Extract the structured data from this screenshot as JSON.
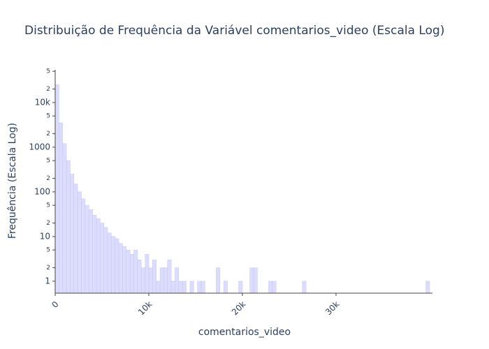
{
  "chart_data": {
    "type": "histogram",
    "title": "Distribuição de Frequência da Variável comentarios_video (Escala Log)",
    "x_label": "comentarios_video",
    "y_label": "Frequência (Escala Log)",
    "color": "#dcdcfc",
    "edge_color": "#c4c6f7",
    "log_y": true,
    "bins": [
      0,
      400,
      800,
      1200,
      1600,
      2000,
      2400,
      2800,
      3200,
      3600,
      4000,
      4400,
      4800,
      5200,
      5600,
      6000,
      6400,
      6800,
      7200,
      7600,
      8000,
      8400,
      8800,
      9200,
      9600,
      10000,
      10400,
      10800,
      11200,
      11600,
      12000,
      12400,
      12800,
      13200,
      13600,
      14000,
      14400,
      14800,
      15200,
      15600,
      16000,
      16400,
      16800,
      17200,
      17600,
      18000,
      18400,
      18800,
      19200,
      19600,
      20000,
      20400,
      20800,
      21200,
      21600,
      22000,
      22400,
      22800,
      23200,
      23600,
      24000,
      24400,
      24800,
      25200,
      25600,
      26000,
      26400,
      26800,
      27200,
      27600,
      28000,
      28400,
      28800,
      29200,
      29600,
      30000,
      30400,
      30800,
      31200,
      31600,
      32000,
      32400,
      32800,
      33200,
      33600,
      34000,
      34400,
      34800,
      35200,
      35600,
      36000,
      36400,
      36800,
      37200,
      37600,
      38000,
      38400,
      38800,
      39200,
      39600,
      40000
    ],
    "values": [
      25000,
      3500,
      1200,
      500,
      250,
      150,
      100,
      70,
      50,
      40,
      30,
      25,
      20,
      16,
      12,
      10,
      9,
      7,
      6,
      5,
      4,
      5,
      3,
      2,
      4,
      2,
      3,
      1,
      2,
      2,
      3,
      1,
      2,
      1,
      1,
      0,
      1,
      0,
      1,
      1,
      0,
      0,
      0,
      2,
      0,
      1,
      0,
      0,
      0,
      1,
      0,
      0,
      2,
      2,
      0,
      0,
      0,
      1,
      1,
      0,
      0,
      0,
      0,
      0,
      0,
      0,
      1,
      0,
      0,
      0,
      0,
      0,
      0,
      0,
      0,
      0,
      0,
      0,
      0,
      0,
      0,
      0,
      0,
      0,
      0,
      0,
      0,
      0,
      0,
      0,
      0,
      0,
      0,
      0,
      0,
      0,
      0,
      0,
      0,
      1
    ],
    "xlim": [
      0,
      40300
    ],
    "xticks": [
      0,
      {
        "value": 10000,
        "label": "10k"
      },
      {
        "value": 20000,
        "label": "20k"
      },
      {
        "value": 30000,
        "label": "30k"
      }
    ],
    "ylim": [
      0.54,
      54000
    ],
    "yticks": [
      1,
      2,
      5,
      10,
      {
        "value": 20,
        "label": "2"
      },
      {
        "value": 50,
        "label": "5"
      },
      100,
      {
        "value": 200,
        "label": "2"
      },
      {
        "value": 500,
        "label": "5"
      },
      1000,
      {
        "value": 2000,
        "label": "2"
      },
      {
        "value": 5000,
        "label": "5"
      },
      {
        "value": 10000,
        "label": "10k"
      },
      {
        "value": 20000,
        "label": "2"
      },
      {
        "value": 50000,
        "label": "5"
      }
    ]
  }
}
